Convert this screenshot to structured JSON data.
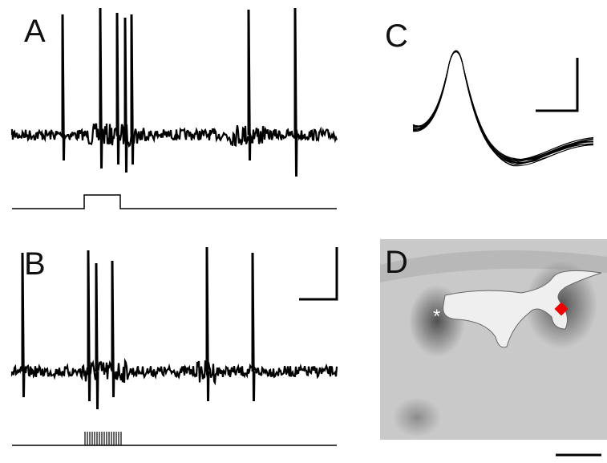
{
  "panels": [
    {
      "label": "A"
    },
    {
      "label": "B"
    },
    {
      "label": "C"
    },
    {
      "label": "D",
      "marker": "*"
    }
  ]
}
